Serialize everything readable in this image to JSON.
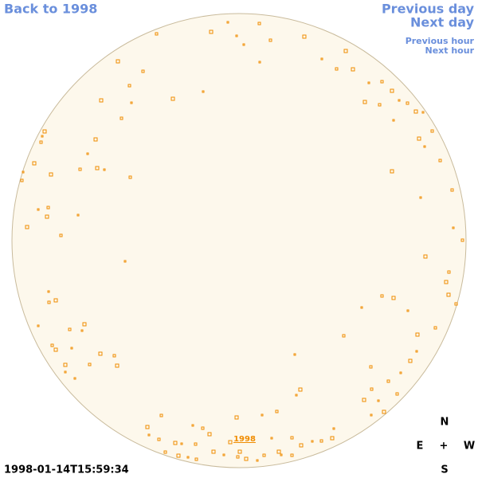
{
  "nav": {
    "back": "Back to 1998",
    "previous_day": "Previous day",
    "next_day": "Next day",
    "previous_hour": "Previous hour",
    "next_hour": "Next hour"
  },
  "disk": {
    "label": "1998"
  },
  "compass": {
    "north": "N",
    "east": "E",
    "center": "+",
    "west": "W",
    "south": "S"
  },
  "timestamp": "1998-01-14T15:59:34"
}
